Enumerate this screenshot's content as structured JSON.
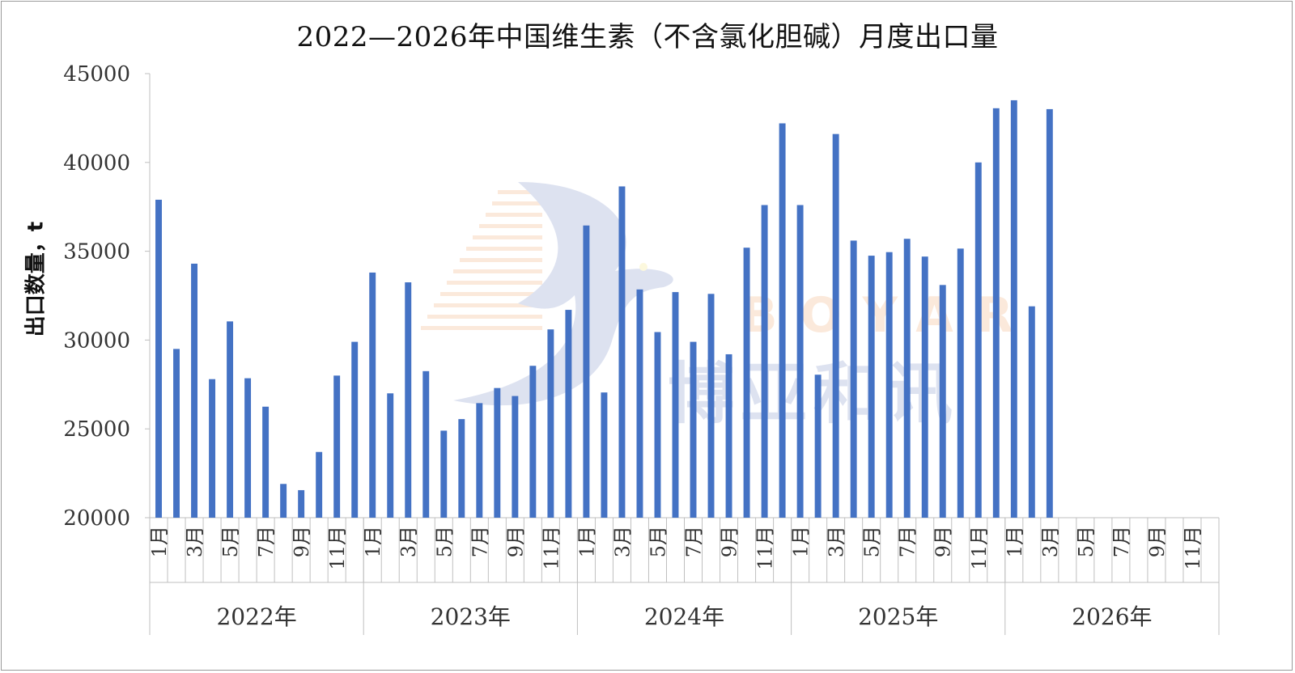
{
  "title": "2022—2026年中国维生素（不含氯化胆碱）月度出口量",
  "watermark": {
    "en": "BOYAR",
    "cn": "博亚和讯"
  },
  "colors": {
    "bar": "#4472c4",
    "axis": "#bfbfbf",
    "text": "#333333"
  },
  "chart_data": {
    "type": "bar",
    "title": "2022—2026年中国维生素（不含氯化胆碱）月度出口量",
    "ylabel": "出口数量，t",
    "xlabel": "",
    "ylim": [
      20000,
      45000
    ],
    "yticks": [
      20000,
      25000,
      30000,
      35000,
      40000,
      45000
    ],
    "grid": false,
    "legend": "none",
    "month_tick_labels": [
      "1月",
      "3月",
      "5月",
      "7月",
      "9月",
      "11月"
    ],
    "years": [
      {
        "year": "2022年",
        "values": [
          37900,
          29500,
          34300,
          27800,
          31050,
          27850,
          26250,
          21900,
          21550,
          23700,
          28000,
          29900
        ]
      },
      {
        "year": "2023年",
        "values": [
          33800,
          27000,
          33250,
          28250,
          24900,
          25550,
          26450,
          27300,
          26850,
          28550,
          30600,
          31700
        ]
      },
      {
        "year": "2024年",
        "values": [
          36450,
          27050,
          38650,
          32850,
          30450,
          32700,
          29900,
          32600,
          29200,
          35200,
          37600,
          42200
        ]
      },
      {
        "year": "2025年",
        "values": [
          37600,
          28050,
          41600,
          35600,
          34750,
          34950,
          35700,
          34700,
          33100,
          35150,
          40000,
          43050
        ]
      },
      {
        "year": "2026年",
        "values": [
          43500,
          31900,
          43000,
          null,
          null,
          null,
          null,
          null,
          null,
          null,
          null,
          null
        ]
      }
    ]
  }
}
